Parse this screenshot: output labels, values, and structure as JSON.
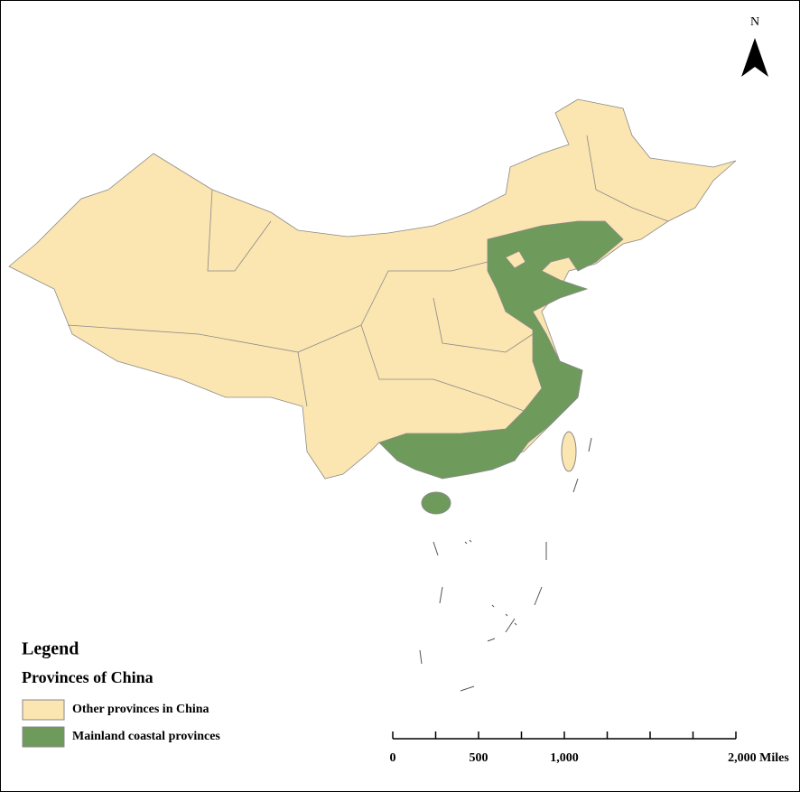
{
  "north_label": "N",
  "legend": {
    "title": "Legend",
    "subtitle": "Provinces of China",
    "items": [
      {
        "label": "Other provinces in China",
        "color": "#fbe5b0"
      },
      {
        "label": "Mainland coastal provinces",
        "color": "#6e9a5c"
      }
    ]
  },
  "scale_bar": {
    "labels": [
      "0",
      "500",
      "1,000",
      "2,000 Miles"
    ]
  }
}
